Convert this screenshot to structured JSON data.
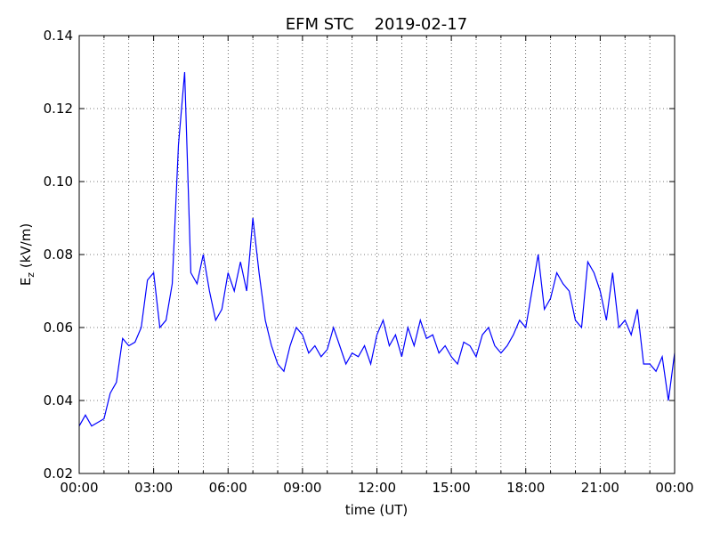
{
  "chart_data": {
    "type": "line",
    "title": "EFM STC    2019-02-17",
    "xlabel": "time (UT)",
    "ylabel": {
      "main": "E",
      "sub": "z",
      "rest": " (kV/m)"
    },
    "xlim": [
      0,
      24
    ],
    "xticks": [
      {
        "value": 0,
        "label": "00:00"
      },
      {
        "value": 3,
        "label": "03:00"
      },
      {
        "value": 6,
        "label": "06:00"
      },
      {
        "value": 9,
        "label": "09:00"
      },
      {
        "value": 12,
        "label": "12:00"
      },
      {
        "value": 15,
        "label": "15:00"
      },
      {
        "value": 18,
        "label": "18:00"
      },
      {
        "value": 21,
        "label": "21:00"
      },
      {
        "value": 24,
        "label": "00:00"
      }
    ],
    "xminorticks": [
      1,
      2,
      4,
      5,
      7,
      8,
      10,
      11,
      13,
      14,
      16,
      17,
      19,
      20,
      22,
      23
    ],
    "ylim": [
      0.02,
      0.14
    ],
    "yticks": [
      0.02,
      0.04,
      0.06,
      0.08,
      {
        "value": 0.1,
        "label": "0.10"
      },
      0.12,
      0.14
    ],
    "grid": true,
    "series": [
      {
        "color": "#0000ff",
        "x": [
          0,
          0.25,
          0.5,
          0.75,
          1,
          1.25,
          1.5,
          1.75,
          2,
          2.25,
          2.5,
          2.75,
          3,
          3.25,
          3.5,
          3.75,
          4,
          4.25,
          4.5,
          4.75,
          5,
          5.25,
          5.5,
          5.75,
          6,
          6.25,
          6.5,
          6.75,
          7,
          7.25,
          7.5,
          7.75,
          8,
          8.25,
          8.5,
          8.75,
          9,
          9.25,
          9.5,
          9.75,
          10,
          10.25,
          10.5,
          10.75,
          11,
          11.25,
          11.5,
          11.75,
          12,
          12.25,
          12.5,
          12.75,
          13,
          13.25,
          13.5,
          13.75,
          14,
          14.25,
          14.5,
          14.75,
          15,
          15.25,
          15.5,
          15.75,
          16,
          16.25,
          16.5,
          16.75,
          17,
          17.25,
          17.5,
          17.75,
          18,
          18.25,
          18.5,
          18.75,
          19,
          19.25,
          19.5,
          19.75,
          20,
          20.25,
          20.5,
          20.75,
          21,
          21.25,
          21.5,
          21.75,
          22,
          22.25,
          22.5,
          22.75,
          23,
          23.25,
          23.5,
          23.75,
          24
        ],
        "values": [
          0.033,
          0.036,
          0.033,
          0.034,
          0.035,
          0.042,
          0.045,
          0.057,
          0.055,
          0.056,
          0.06,
          0.073,
          0.075,
          0.06,
          0.062,
          0.072,
          0.11,
          0.13,
          0.075,
          0.072,
          0.08,
          0.07,
          0.062,
          0.065,
          0.075,
          0.07,
          0.078,
          0.07,
          0.09,
          0.075,
          0.062,
          0.055,
          0.05,
          0.048,
          0.055,
          0.06,
          0.058,
          0.053,
          0.055,
          0.052,
          0.054,
          0.06,
          0.055,
          0.05,
          0.053,
          0.052,
          0.055,
          0.05,
          0.058,
          0.062,
          0.055,
          0.058,
          0.052,
          0.06,
          0.055,
          0.062,
          0.057,
          0.058,
          0.053,
          0.055,
          0.052,
          0.05,
          0.056,
          0.055,
          0.052,
          0.058,
          0.06,
          0.055,
          0.053,
          0.055,
          0.058,
          0.062,
          0.06,
          0.07,
          0.08,
          0.065,
          0.068,
          0.075,
          0.072,
          0.07,
          0.062,
          0.06,
          0.078,
          0.075,
          0.07,
          0.062,
          0.075,
          0.06,
          0.062,
          0.058,
          0.065,
          0.05,
          0.05,
          0.048,
          0.052,
          0.04,
          0.053
        ]
      }
    ]
  }
}
